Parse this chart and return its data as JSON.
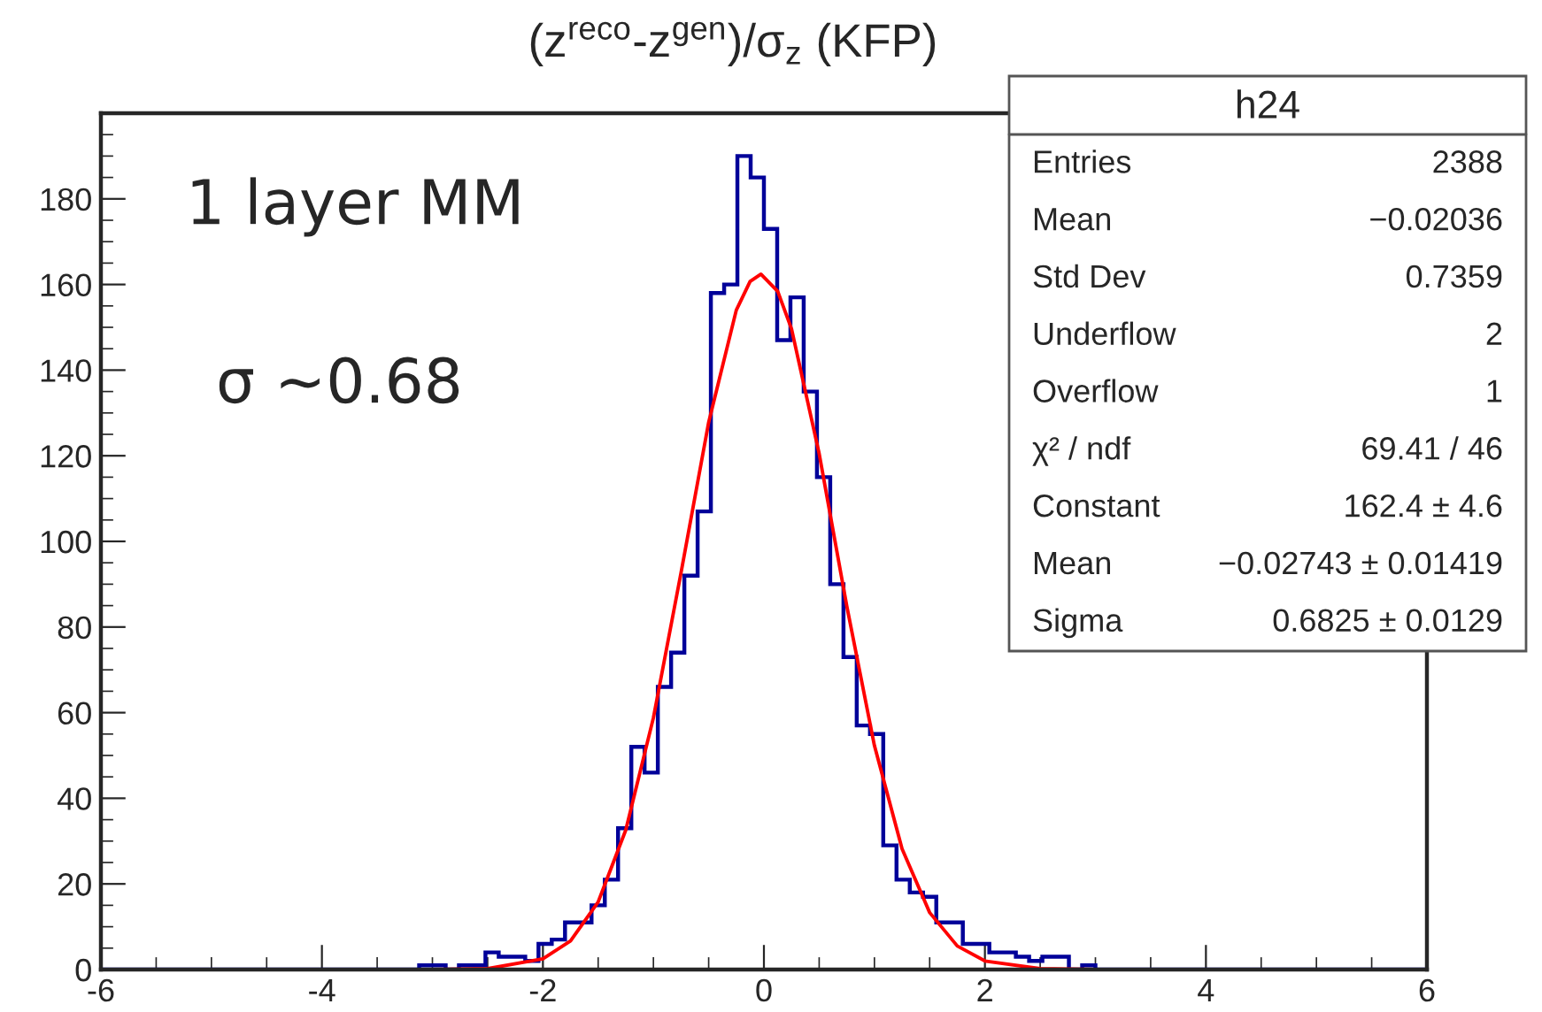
{
  "chart_data": {
    "type": "histogram",
    "title": "(z$^{reco}$-z$^{gen}$)/σ$_{z}$ (KFP)",
    "bins": [
      -6,
      -5.88,
      -5.76,
      -5.64,
      -5.52,
      -5.4,
      -5.28,
      -5.16,
      -5.04,
      -4.92,
      -4.8,
      -4.68,
      -4.56,
      -4.44,
      -4.32,
      -4.2,
      -4.08,
      -3.96,
      -3.84,
      -3.72,
      -3.6,
      -3.48,
      -3.36,
      -3.24,
      -3.12,
      -3,
      -2.88,
      -2.76,
      -2.64,
      -2.52,
      -2.4,
      -2.28,
      -2.16,
      -2.04,
      -1.92,
      -1.8,
      -1.68,
      -1.56,
      -1.44,
      -1.32,
      -1.2,
      -1.08,
      -0.96,
      -0.84,
      -0.72,
      -0.6,
      -0.48,
      -0.36,
      -0.24,
      -0.12,
      0,
      0.12,
      0.24,
      0.36,
      0.48,
      0.6,
      0.72,
      0.84,
      0.96,
      1.08,
      1.2,
      1.32,
      1.44,
      1.56,
      1.68,
      1.8,
      1.92,
      2.04,
      2.16,
      2.28,
      2.4,
      2.52,
      2.64,
      2.76,
      2.88,
      3,
      3.12,
      3.24,
      3.36,
      3.48,
      3.6,
      3.72,
      3.84,
      3.96,
      4.08,
      4.2,
      4.32,
      4.44,
      4.56,
      4.68,
      4.8,
      4.92,
      5.04,
      5.16,
      5.28,
      5.4,
      5.52,
      5.64,
      5.76,
      5.88,
      6
    ],
    "series": [
      {
        "color": "#000099",
        "values": [
          0,
          0,
          0,
          0,
          0,
          0,
          0,
          0,
          0,
          0,
          0,
          0,
          0,
          0,
          0,
          0,
          0,
          0,
          0,
          0,
          0,
          0,
          0,
          0,
          1,
          1,
          0,
          1,
          1,
          4,
          3,
          3,
          2,
          6,
          7,
          11,
          11,
          15,
          21,
          33,
          52,
          46,
          66,
          74,
          92,
          107,
          158,
          160,
          190,
          185,
          173,
          147,
          157,
          135,
          115,
          90,
          73,
          57,
          55,
          29,
          21,
          18,
          17,
          11,
          11,
          6,
          6,
          4,
          4,
          3,
          2,
          3,
          3,
          0,
          1,
          0,
          0,
          0,
          0,
          0,
          0,
          0,
          0,
          0,
          0,
          0,
          0,
          0,
          0,
          0,
          0,
          0,
          0,
          0,
          0,
          0,
          0,
          0,
          0,
          0
        ]
      },
      {
        "type": "line",
        "color": "#ff0000",
        "x": [
          -6,
          -3,
          -2.5,
          -2,
          -1.75,
          -1.5,
          -1.25,
          -1,
          -0.75,
          -0.5,
          -0.25,
          -0.125,
          -0.027,
          0.125,
          0.25,
          0.5,
          0.75,
          1,
          1.25,
          1.5,
          1.75,
          2,
          2.5,
          3,
          6
        ],
        "values": [
          0,
          0,
          0.2,
          2.5,
          6.7,
          15.8,
          32.6,
          58.8,
          92.7,
          127.8,
          154,
          160.7,
          162.4,
          158.4,
          149.6,
          120.5,
          84.9,
          52.3,
          28.2,
          13.3,
          5.5,
          2,
          0.2,
          0,
          0
        ]
      }
    ],
    "xlim": [
      -6,
      6
    ],
    "xticks": [
      -6,
      -4,
      -2,
      0,
      2,
      4,
      6
    ],
    "ylim": [
      0,
      200
    ],
    "yticks": [
      0,
      20,
      40,
      60,
      80,
      100,
      120,
      140,
      160,
      180
    ],
    "grid": false,
    "annotations": [
      "1 layer MM",
      "σ ~0.68",
      "h24",
      "Entries",
      "2388",
      "Mean",
      "−0.02036",
      "Std Dev",
      "0.7359",
      "Underflow",
      "2",
      "Overflow",
      "1",
      "χ² / ndf",
      "69.41 / 46",
      "Constant",
      "162.4 ± 4.6",
      "Mean",
      "−0.02743 ± 0.01419",
      "Sigma",
      "0.6825 ± 0.0129"
    ]
  }
}
